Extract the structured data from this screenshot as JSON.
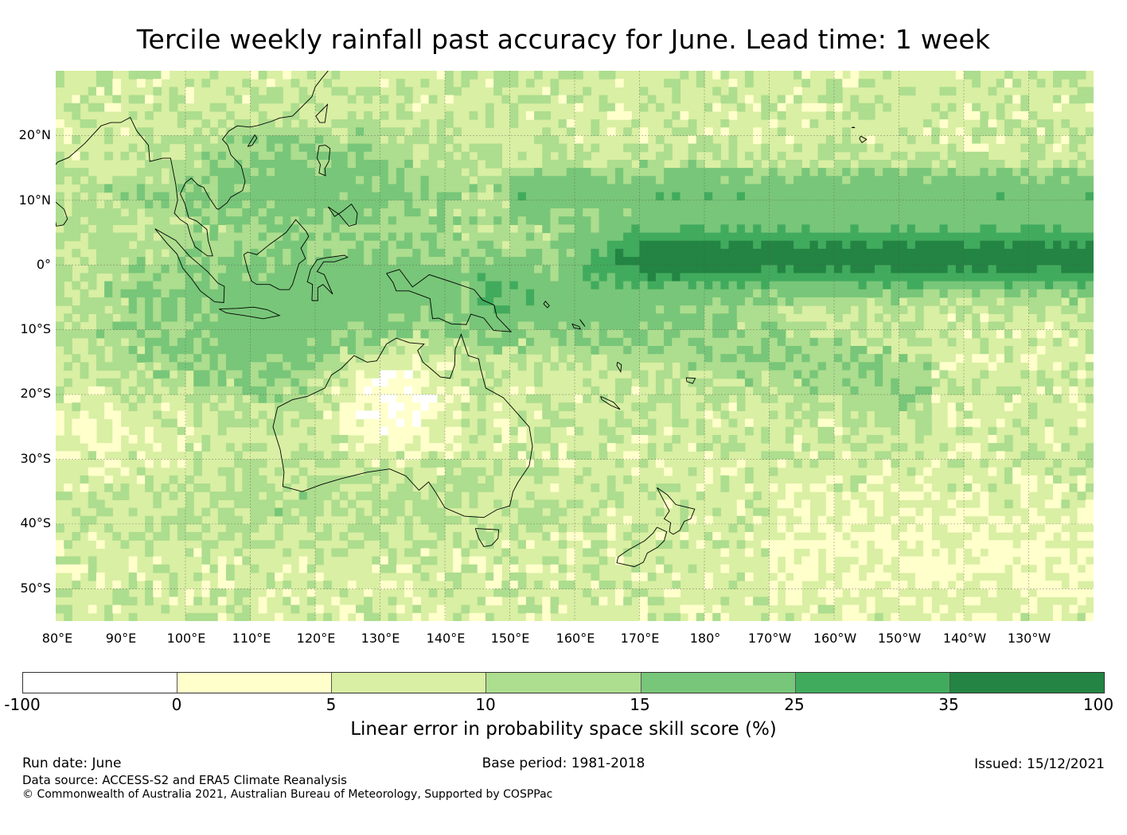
{
  "title": "Tercile weekly rainfall past accuracy for June. Lead time: 1 week",
  "map": {
    "lon_labels": [
      "80°E",
      "90°E",
      "100°E",
      "110°E",
      "120°E",
      "130°E",
      "140°E",
      "150°E",
      "160°E",
      "170°E",
      "180°",
      "170°W",
      "160°W",
      "150°W",
      "140°W",
      "130°W"
    ],
    "lat_labels": [
      "20°N",
      "10°N",
      "0°",
      "10°S",
      "20°S",
      "30°S",
      "40°S",
      "50°S"
    ],
    "lon_range_deg_east": [
      80,
      240
    ],
    "lat_range": [
      -55,
      30
    ],
    "grid": true
  },
  "colorbar": {
    "ticks": [
      "-100",
      "0",
      "5",
      "10",
      "15",
      "25",
      "35",
      "100"
    ],
    "colors": [
      "#ffffff",
      "#ffffcc",
      "#d9efa3",
      "#addd8e",
      "#78c679",
      "#41ab5d",
      "#238443"
    ],
    "label": "Linear error in probability space skill score (%)"
  },
  "footer": {
    "run_date": "Run date: June",
    "base_period": "Base period: 1981-2018",
    "issued": "Issued: 15/12/2021",
    "data_source": "Data source: ACCESS-S2 and ERA5 Climate Reanalysis",
    "copyright": "© Commonwealth of Australia 2021, Australian Bureau of Meteorology, Supported by COSPPac"
  }
}
